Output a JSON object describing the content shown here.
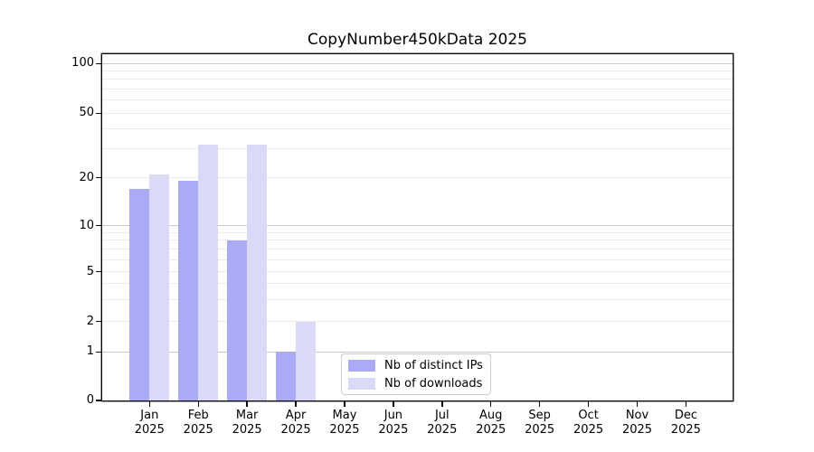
{
  "figure": {
    "title": "CopyNumber450kData 2025"
  },
  "chart_data": {
    "type": "bar",
    "title": "CopyNumber450kData 2025",
    "x": {
      "months": [
        "Jan",
        "Feb",
        "Mar",
        "Apr",
        "May",
        "Jun",
        "Jul",
        "Aug",
        "Sep",
        "Oct",
        "Nov",
        "Dec"
      ],
      "year": "2025"
    },
    "series": [
      {
        "name": "Nb of distinct IPs",
        "color": "#aaaaf6",
        "values": [
          17,
          19,
          8,
          1,
          0,
          0,
          0,
          0,
          0,
          0,
          0,
          0
        ]
      },
      {
        "name": "Nb of downloads",
        "color": "#dadaf8",
        "values": [
          21,
          32,
          32,
          2,
          0,
          0,
          0,
          0,
          0,
          0,
          0,
          0
        ]
      }
    ],
    "yaxis": {
      "scale": "pseudo-log",
      "ticks": [
        100,
        50,
        20,
        10,
        5,
        2,
        1,
        0
      ],
      "major_gridlines": [
        100,
        10,
        1
      ],
      "minor_gridlines": [
        2,
        3,
        4,
        5,
        6,
        7,
        8,
        9,
        20,
        30,
        40,
        50,
        60,
        70,
        80,
        90
      ],
      "ylim": [
        0,
        114
      ]
    },
    "legend": {
      "position": "lower-center",
      "entries": [
        "Nb of distinct IPs",
        "Nb of downloads"
      ]
    },
    "grid": true
  },
  "colors": {
    "major_grid": "#c8c8c8",
    "minor_grid": "#ebebeb",
    "spine": "#0a0a0a",
    "background": "#ffffff"
  }
}
